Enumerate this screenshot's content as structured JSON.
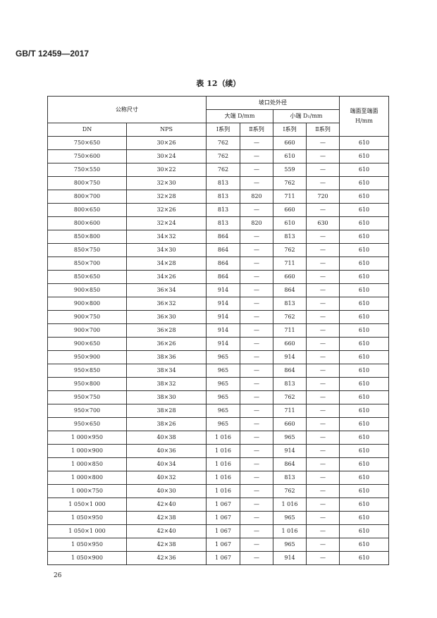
{
  "standard": "GB/T 12459—2017",
  "caption": "表 12（续）",
  "header": {
    "nominal": "公称尺寸",
    "bevel_od": "坡口处外径",
    "large": "大端 D/mm",
    "small": "小端 D₁/mm",
    "h": "端面至端面 H/mm",
    "dn": "DN",
    "nps": "NPS",
    "s1": "Ⅰ系列",
    "s2": "Ⅱ系列"
  },
  "rows": [
    [
      "750×650",
      "30×26",
      "762",
      "—",
      "660",
      "—",
      "610"
    ],
    [
      "750×600",
      "30×24",
      "762",
      "—",
      "610",
      "—",
      "610"
    ],
    [
      "750×550",
      "30×22",
      "762",
      "—",
      "559",
      "—",
      "610"
    ],
    [
      "800×750",
      "32×30",
      "813",
      "—",
      "762",
      "—",
      "610"
    ],
    [
      "800×700",
      "32×28",
      "813",
      "820",
      "711",
      "720",
      "610"
    ],
    [
      "800×650",
      "32×26",
      "813",
      "—",
      "660",
      "—",
      "610"
    ],
    [
      "800×600",
      "32×24",
      "813",
      "820",
      "610",
      "630",
      "610"
    ],
    [
      "850×800",
      "34×32",
      "864",
      "—",
      "813",
      "—",
      "610"
    ],
    [
      "850×750",
      "34×30",
      "864",
      "—",
      "762",
      "—",
      "610"
    ],
    [
      "850×700",
      "34×28",
      "864",
      "—",
      "711",
      "—",
      "610"
    ],
    [
      "850×650",
      "34×26",
      "864",
      "—",
      "660",
      "—",
      "610"
    ],
    [
      "900×850",
      "36×34",
      "914",
      "—",
      "864",
      "—",
      "610"
    ],
    [
      "900×800",
      "36×32",
      "914",
      "—",
      "813",
      "—",
      "610"
    ],
    [
      "900×750",
      "36×30",
      "914",
      "—",
      "762",
      "—",
      "610"
    ],
    [
      "900×700",
      "36×28",
      "914",
      "—",
      "711",
      "—",
      "610"
    ],
    [
      "900×650",
      "36×26",
      "914",
      "—",
      "660",
      "—",
      "610"
    ],
    [
      "950×900",
      "38×36",
      "965",
      "—",
      "914",
      "—",
      "610"
    ],
    [
      "950×850",
      "38×34",
      "965",
      "—",
      "864",
      "—",
      "610"
    ],
    [
      "950×800",
      "38×32",
      "965",
      "—",
      "813",
      "—",
      "610"
    ],
    [
      "950×750",
      "38×30",
      "965",
      "—",
      "762",
      "—",
      "610"
    ],
    [
      "950×700",
      "38×28",
      "965",
      "—",
      "711",
      "—",
      "610"
    ],
    [
      "950×650",
      "38×26",
      "965",
      "—",
      "660",
      "—",
      "610"
    ],
    [
      "1 000×950",
      "40×38",
      "1 016",
      "—",
      "965",
      "—",
      "610"
    ],
    [
      "1 000×900",
      "40×36",
      "1 016",
      "—",
      "914",
      "—",
      "610"
    ],
    [
      "1 000×850",
      "40×34",
      "1 016",
      "—",
      "864",
      "—",
      "610"
    ],
    [
      "1 000×800",
      "40×32",
      "1 016",
      "—",
      "813",
      "—",
      "610"
    ],
    [
      "1 000×750",
      "40×30",
      "1 016",
      "—",
      "762",
      "—",
      "610"
    ],
    [
      "1 050×1 000",
      "42×40",
      "1 067",
      "—",
      "1 016",
      "—",
      "610"
    ],
    [
      "1 050×950",
      "42×38",
      "1 067",
      "—",
      "965",
      "—",
      "610"
    ],
    [
      "1 050×1 000",
      "42×40",
      "1 067",
      "—",
      "1 016",
      "—",
      "610"
    ],
    [
      "1 050×950",
      "42×38",
      "1 067",
      "—",
      "965",
      "—",
      "610"
    ],
    [
      "1 050×900",
      "42×36",
      "1 067",
      "—",
      "914",
      "—",
      "610"
    ]
  ],
  "page_number": "26"
}
